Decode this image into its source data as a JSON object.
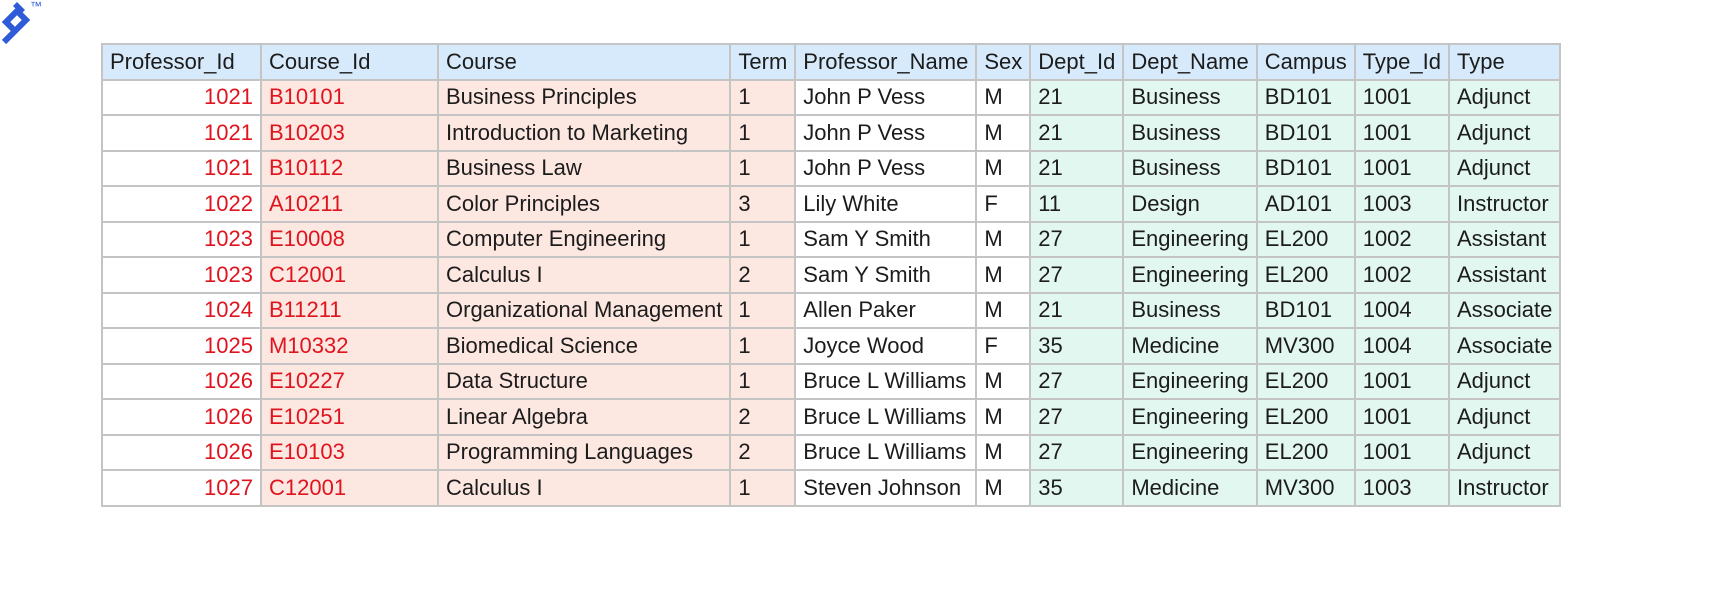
{
  "columns": [
    "Professor_Id",
    "Course_Id",
    "Course",
    "Term",
    "Professor_Name",
    "Sex",
    "Dept_Id",
    "Dept_Name",
    "Campus",
    "Type_Id",
    "Type"
  ],
  "rows": [
    [
      "1021",
      "B10101",
      "Business Principles",
      "1",
      "John P Vess",
      "M",
      "21",
      "Business",
      "BD101",
      "1001",
      "Adjunct"
    ],
    [
      "1021",
      "B10203",
      "Introduction to Marketing",
      "1",
      "John P Vess",
      "M",
      "21",
      "Business",
      "BD101",
      "1001",
      "Adjunct"
    ],
    [
      "1021",
      "B10112",
      "Business Law",
      "1",
      "John P Vess",
      "M",
      "21",
      "Business",
      "BD101",
      "1001",
      "Adjunct"
    ],
    [
      "1022",
      "A10211",
      "Color Principles",
      "3",
      "Lily White",
      "F",
      "11",
      "Design",
      "AD101",
      "1003",
      "Instructor"
    ],
    [
      "1023",
      "E10008",
      "Computer Engineering",
      "1",
      "Sam Y Smith",
      "M",
      "27",
      "Engineering",
      "EL200",
      "1002",
      "Assistant"
    ],
    [
      "1023",
      "C12001",
      "Calculus I",
      "2",
      "Sam Y Smith",
      "M",
      "27",
      "Engineering",
      "EL200",
      "1002",
      "Assistant"
    ],
    [
      "1024",
      "B11211",
      "Organizational Management",
      "1",
      "Allen Paker",
      "M",
      "21",
      "Business",
      "BD101",
      "1004",
      "Associate"
    ],
    [
      "1025",
      "M10332",
      "Biomedical Science",
      "1",
      "Joyce Wood",
      "F",
      "35",
      "Medicine",
      "MV300",
      "1004",
      "Associate"
    ],
    [
      "1026",
      "E10227",
      "Data Structure",
      "1",
      "Bruce L Williams",
      "M",
      "27",
      "Engineering",
      "EL200",
      "1001",
      "Adjunct"
    ],
    [
      "1026",
      "E10251",
      "Linear Algebra",
      "2",
      "Bruce L Williams",
      "M",
      "27",
      "Engineering",
      "EL200",
      "1001",
      "Adjunct"
    ],
    [
      "1026",
      "E10103",
      "Programming Languages",
      "2",
      "Bruce L Williams",
      "M",
      "27",
      "Engineering",
      "EL200",
      "1001",
      "Adjunct"
    ],
    [
      "1027",
      "C12001",
      "Calculus I",
      "1",
      "Steven Johnson",
      "M",
      "35",
      "Medicine",
      "MV300",
      "1003",
      "Instructor"
    ]
  ],
  "logo": {
    "icon": "toptal-logo-icon",
    "trademark": "™",
    "color": "#2f5bd8"
  },
  "colors": {
    "header_bg": "#d6eafb",
    "course_group_bg": "#fde7e1",
    "professor_group_bg": "#ffffff",
    "dept_group_bg": "#e2f7ef",
    "id_text": "#e0141e",
    "border": "#c4c4c4"
  }
}
